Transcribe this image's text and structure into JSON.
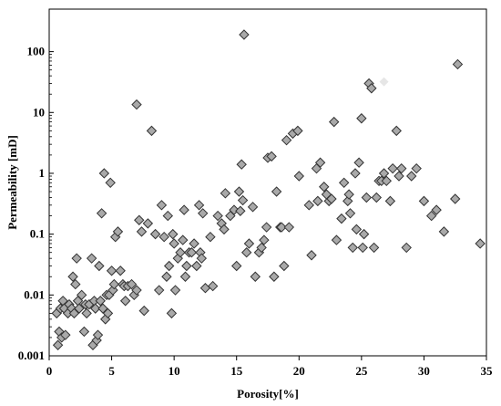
{
  "chart_data": {
    "type": "scatter",
    "title": "",
    "xlabel": "Porosity[%]",
    "ylabel": "Permeability [mD]",
    "xlim": [
      0,
      35
    ],
    "ylim": [
      0.001,
      500
    ],
    "yscale": "log",
    "grid": false,
    "legend": "none",
    "x_ticks": [
      0,
      5,
      10,
      15,
      20,
      25,
      30,
      35
    ],
    "x_tick_labels": [
      "0",
      "5",
      "10",
      "15",
      "20",
      "25",
      "30",
      "35"
    ],
    "y_ticks": [
      0.001,
      0.01,
      0.1,
      1,
      10,
      100
    ],
    "y_tick_labels": [
      "0.001",
      "0.01",
      "0.1",
      "1",
      "10",
      "100"
    ],
    "colors": {
      "marker_fill": "#a9a9a9",
      "marker_edge": "#333333",
      "faint_marker": "#e6e6e6",
      "axis": "#000000"
    },
    "series": [
      {
        "x": [
          0.6,
          0.7,
          0.8,
          0.9,
          1.0,
          1.1,
          1.2,
          1.3,
          1.5,
          1.6,
          1.8,
          1.9,
          2.0,
          2.1,
          2.2,
          2.3,
          2.4,
          2.6,
          2.8,
          2.9,
          3.0,
          3.2,
          3.4,
          3.5,
          3.6,
          3.7,
          3.8,
          3.9,
          4.0,
          4.1,
          4.2,
          4.3,
          4.4,
          4.5,
          4.6,
          4.7,
          4.8,
          4.9,
          5.0,
          5.1,
          5.2,
          5.3,
          5.5,
          5.7,
          5.9,
          6.0,
          6.1,
          6.3,
          6.6,
          6.8,
          7.0,
          7.0,
          7.2,
          7.4,
          7.6,
          7.9,
          8.2,
          8.5,
          8.8,
          9.0,
          9.2,
          9.4,
          9.5,
          9.6,
          9.8,
          9.9,
          10.0,
          10.1,
          10.3,
          10.5,
          10.7,
          10.8,
          10.9,
          11.0,
          11.2,
          11.4,
          11.6,
          11.8,
          12.0,
          12.1,
          12.2,
          12.3,
          12.5,
          12.9,
          13.1,
          13.5,
          13.8,
          14.0,
          14.1,
          14.5,
          14.8,
          15.0,
          15.2,
          15.3,
          15.4,
          15.5,
          15.6,
          15.8,
          16.0,
          16.3,
          16.5,
          16.8,
          17.0,
          17.2,
          17.4,
          17.5,
          17.8,
          18.0,
          18.2,
          18.5,
          18.6,
          18.8,
          19.0,
          19.2,
          19.5,
          19.9,
          20.0,
          20.8,
          21.0,
          21.4,
          21.5,
          21.7,
          22.0,
          22.2,
          22.4,
          22.6,
          22.8,
          23.0,
          23.4,
          23.6,
          23.9,
          24.0,
          24.1,
          24.3,
          24.5,
          24.6,
          24.8,
          25.0,
          25.1,
          25.2,
          25.4,
          25.6,
          25.8,
          26.0,
          26.2,
          26.4,
          26.6,
          26.8,
          27.0,
          27.3,
          27.5,
          27.8,
          28.0,
          28.2,
          28.6,
          29.0,
          29.4,
          30.0,
          30.6,
          31.0,
          31.6,
          32.5,
          32.7,
          34.5
        ],
        "y": [
          0.005,
          0.0015,
          0.0025,
          0.006,
          0.002,
          0.008,
          0.006,
          0.0022,
          0.005,
          0.007,
          0.006,
          0.02,
          0.005,
          0.015,
          0.04,
          0.008,
          0.006,
          0.01,
          0.0025,
          0.007,
          0.005,
          0.007,
          0.04,
          0.0015,
          0.008,
          0.006,
          0.0018,
          0.0022,
          0.03,
          0.008,
          0.22,
          0.006,
          1.0,
          0.004,
          0.01,
          0.005,
          0.01,
          0.7,
          0.025,
          0.012,
          0.015,
          0.09,
          0.11,
          0.025,
          0.015,
          0.014,
          0.008,
          0.014,
          0.015,
          0.01,
          0.012,
          13.5,
          0.17,
          0.11,
          0.0055,
          0.15,
          5.0,
          0.1,
          0.012,
          0.3,
          0.09,
          0.02,
          0.2,
          0.03,
          0.005,
          0.1,
          0.07,
          0.012,
          0.04,
          0.05,
          0.08,
          0.25,
          0.02,
          0.03,
          0.05,
          0.05,
          0.07,
          0.03,
          0.3,
          0.05,
          0.04,
          0.22,
          0.013,
          0.09,
          0.014,
          0.2,
          0.15,
          0.12,
          0.47,
          0.2,
          0.25,
          0.03,
          0.5,
          0.24,
          1.4,
          0.36,
          190.0,
          0.05,
          0.07,
          0.28,
          0.02,
          0.05,
          0.06,
          0.08,
          0.13,
          1.8,
          1.9,
          0.02,
          0.5,
          0.13,
          0.13,
          0.03,
          3.5,
          0.13,
          4.5,
          5.0,
          0.9,
          0.3,
          0.045,
          1.2,
          0.35,
          1.5,
          0.6,
          0.45,
          0.35,
          0.38,
          7.0,
          0.08,
          0.18,
          0.7,
          0.35,
          0.45,
          0.22,
          0.06,
          1.0,
          0.12,
          1.5,
          8.0,
          0.06,
          0.1,
          0.4,
          30.0,
          25.0,
          0.06,
          0.4,
          0.75,
          0.75,
          1.0,
          0.75,
          0.35,
          1.2,
          5.0,
          0.9,
          1.2,
          0.06,
          0.9,
          1.2,
          0.35,
          0.2,
          0.25,
          0.11,
          0.38,
          62.0,
          0.07
        ]
      }
    ],
    "faint_points": {
      "x": [
        26.8
      ],
      "y": [
        32.0
      ]
    }
  }
}
